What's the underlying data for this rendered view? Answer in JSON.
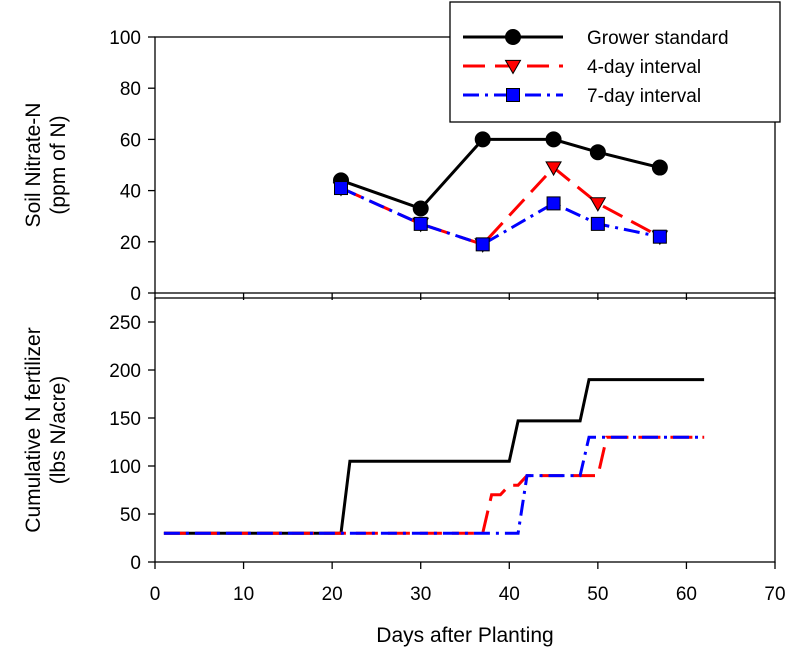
{
  "chart_data": [
    {
      "type": "line",
      "panel": "top",
      "ylabel_lines": [
        "Soil Nitrate-N",
        "(ppm of N)"
      ],
      "ylim": [
        0,
        100
      ],
      "yticks": [
        0,
        20,
        40,
        60,
        80,
        100
      ],
      "xlim": [
        0,
        70
      ],
      "x_tick_labels_shown": false,
      "legend": {
        "placement": "top-right"
      },
      "series": [
        {
          "name": "Grower standard",
          "color": "#000000",
          "marker": "circle",
          "linestyle": "solid",
          "x": [
            21,
            30,
            37,
            45,
            50,
            57
          ],
          "y": [
            44,
            33,
            60,
            60,
            55,
            49
          ]
        },
        {
          "name": "4-day interval",
          "color": "#ff0000",
          "marker": "triangle-down",
          "linestyle": "dashed",
          "x": [
            21,
            30,
            37,
            45,
            50,
            57
          ],
          "y": [
            41,
            27,
            19,
            49,
            35,
            22
          ]
        },
        {
          "name": "7-day interval",
          "color": "#0000ff",
          "marker": "square",
          "linestyle": "dash-dot",
          "x": [
            21,
            30,
            37,
            45,
            50,
            57
          ],
          "y": [
            41,
            27,
            19,
            35,
            27,
            22
          ]
        }
      ]
    },
    {
      "type": "line",
      "panel": "bottom",
      "ylabel_lines": [
        "Cumulative N fertilizer",
        "(lbs N/acre)"
      ],
      "xlabel": "Days after Planting",
      "ylim": [
        0,
        275
      ],
      "yticks": [
        0,
        50,
        100,
        150,
        200,
        250
      ],
      "xlim": [
        0,
        70
      ],
      "xticks": [
        0,
        10,
        20,
        30,
        40,
        50,
        60,
        70
      ],
      "series": [
        {
          "color": "#000000",
          "linestyle": "solid",
          "x": [
            1,
            21,
            22,
            40,
            41,
            48,
            49,
            62
          ],
          "y": [
            30,
            30,
            105,
            105,
            147,
            147,
            190,
            190
          ]
        },
        {
          "color": "#ff0000",
          "linestyle": "dashed",
          "x": [
            1,
            37,
            38,
            39,
            40,
            41,
            42,
            50,
            51,
            62
          ],
          "y": [
            30,
            30,
            70,
            70,
            80,
            80,
            90,
            90,
            130,
            130
          ]
        },
        {
          "color": "#0000ff",
          "linestyle": "dash-dot",
          "x": [
            1,
            41,
            42,
            48,
            49,
            62
          ],
          "y": [
            30,
            30,
            90,
            90,
            130,
            130
          ]
        }
      ]
    }
  ]
}
